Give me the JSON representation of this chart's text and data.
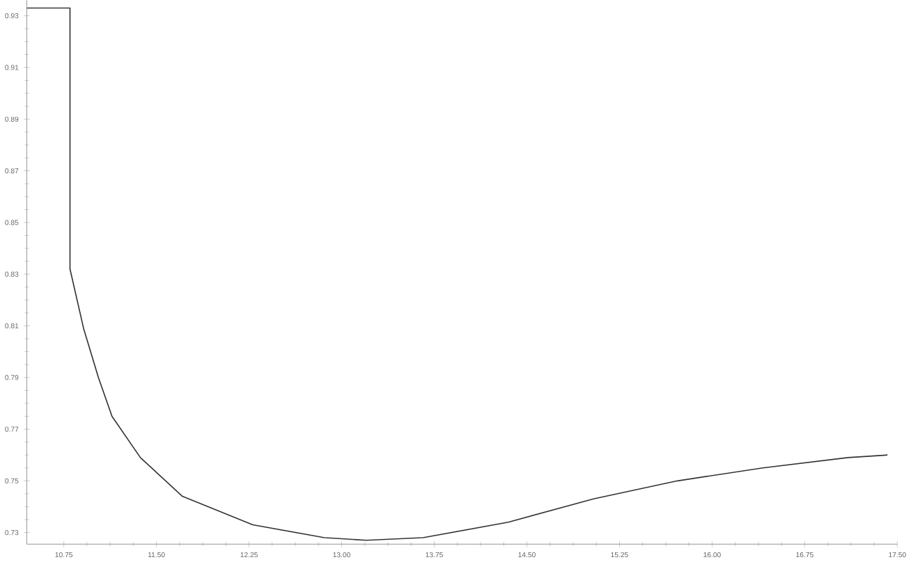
{
  "chart_data": {
    "type": "line",
    "x": [
      10.45,
      10.8,
      10.8,
      10.91,
      11.03,
      11.14,
      11.37,
      11.71,
      12.28,
      12.86,
      13.2,
      13.66,
      14.35,
      15.04,
      15.72,
      16.41,
      17.1,
      17.42
    ],
    "series": [
      {
        "color": "#333333",
        "values": [
          0.933,
          0.933,
          0.832,
          0.809,
          0.79,
          0.775,
          0.759,
          0.744,
          0.733,
          0.728,
          0.727,
          0.728,
          0.734,
          0.743,
          0.75,
          0.755,
          0.759,
          0.76
        ]
      }
    ],
    "xlim": [
      10.45,
      17.5
    ],
    "xticks": [
      10.75,
      {
        "value": 11.5,
        "label": "11.50"
      },
      12.25,
      {
        "value": 13,
        "label": "13.00"
      },
      13.75,
      {
        "value": 14.5,
        "label": "14.50"
      },
      15.25,
      {
        "value": 16,
        "label": "16.00"
      },
      16.75,
      {
        "value": 17.5,
        "label": "17.50"
      }
    ],
    "ylim": [
      0.7255,
      0.936
    ],
    "yticks": [
      0.73,
      0.75,
      0.77,
      0.79,
      0.81,
      0.83,
      0.85,
      0.87,
      0.89,
      0.91,
      0.93
    ],
    "grid": false,
    "marker": "none",
    "line_style": "solid"
  }
}
